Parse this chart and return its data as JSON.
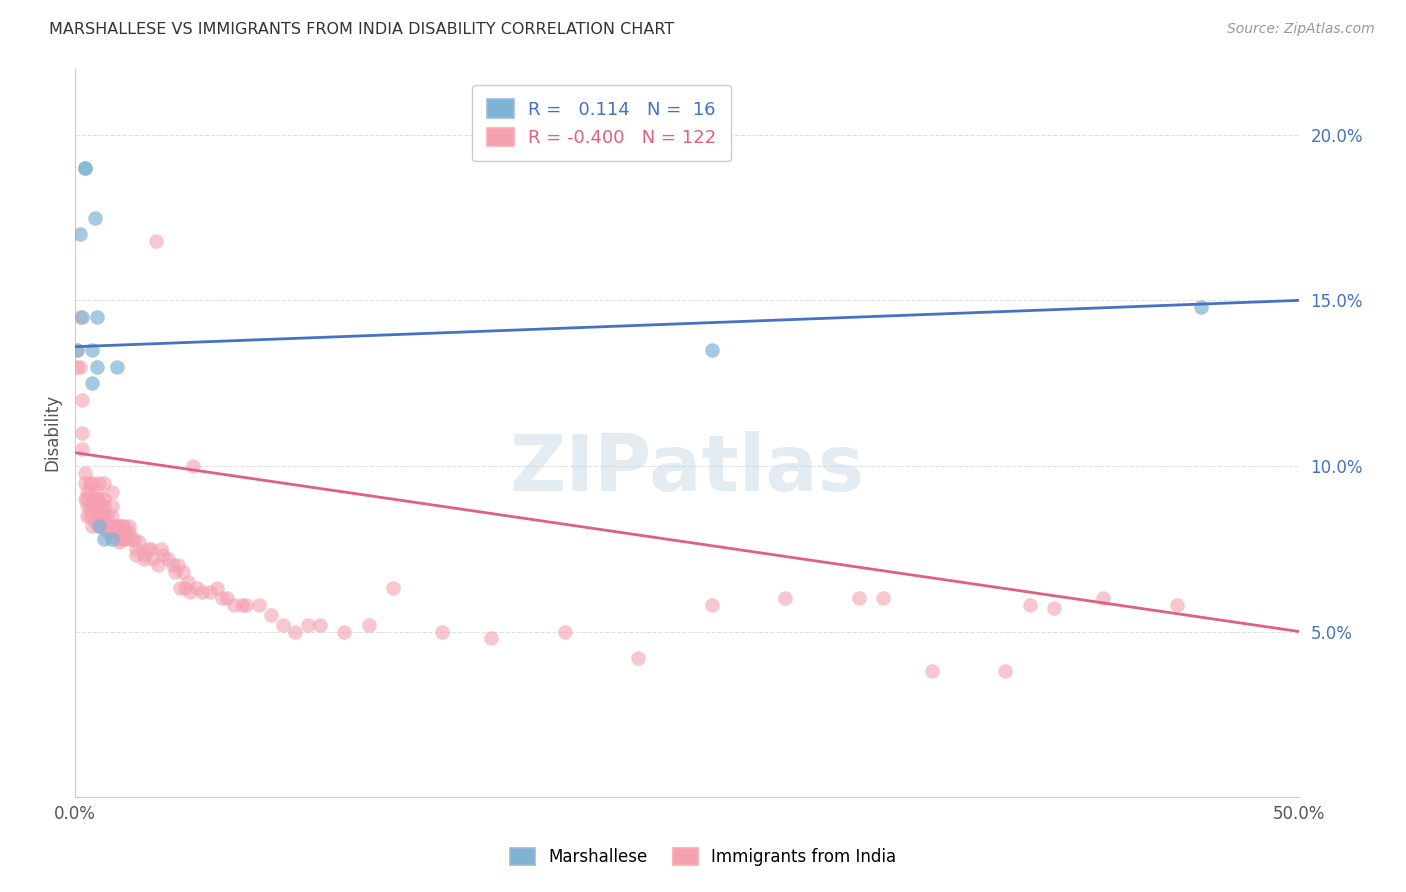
{
  "title": "MARSHALLESE VS IMMIGRANTS FROM INDIA DISABILITY CORRELATION CHART",
  "source": "Source: ZipAtlas.com",
  "ylabel": "Disability",
  "xlim": [
    0.0,
    0.5
  ],
  "ylim": [
    0.0,
    0.22
  ],
  "xticks": [
    0.0,
    0.1,
    0.2,
    0.3,
    0.4,
    0.5
  ],
  "xticklabels": [
    "0.0%",
    "",
    "",
    "",
    "",
    "50.0%"
  ],
  "yticks_right": [
    0.05,
    0.1,
    0.15,
    0.2
  ],
  "ytick_labels_right": [
    "5.0%",
    "10.0%",
    "15.0%",
    "20.0%"
  ],
  "grid_color": "#e0e0e0",
  "background_color": "#ffffff",
  "blue_color": "#7fb3d3",
  "pink_color": "#f4a0b0",
  "blue_line_color": "#4472c4",
  "pink_line_color": "#e06080",
  "legend_blue_r": "0.114",
  "legend_blue_n": "16",
  "legend_pink_r": "-0.400",
  "legend_pink_n": "122",
  "blue_line_x0": 0.0,
  "blue_line_y0": 0.136,
  "blue_line_x1": 0.5,
  "blue_line_y1": 0.15,
  "pink_line_x0": 0.0,
  "pink_line_x1": 0.5,
  "pink_line_y0": 0.104,
  "pink_line_y1": 0.05,
  "marshallese_x": [
    0.001,
    0.002,
    0.003,
    0.004,
    0.004,
    0.007,
    0.007,
    0.008,
    0.009,
    0.009,
    0.01,
    0.012,
    0.015,
    0.017,
    0.26,
    0.46
  ],
  "marshallese_y": [
    0.135,
    0.17,
    0.145,
    0.19,
    0.19,
    0.135,
    0.125,
    0.175,
    0.13,
    0.145,
    0.082,
    0.078,
    0.078,
    0.13,
    0.135,
    0.148
  ],
  "india_x": [
    0.001,
    0.001,
    0.002,
    0.002,
    0.003,
    0.003,
    0.003,
    0.004,
    0.004,
    0.004,
    0.005,
    0.005,
    0.005,
    0.005,
    0.006,
    0.006,
    0.006,
    0.006,
    0.007,
    0.007,
    0.007,
    0.007,
    0.008,
    0.008,
    0.008,
    0.008,
    0.009,
    0.009,
    0.009,
    0.009,
    0.01,
    0.01,
    0.01,
    0.01,
    0.01,
    0.011,
    0.011,
    0.011,
    0.012,
    0.012,
    0.012,
    0.012,
    0.013,
    0.013,
    0.013,
    0.014,
    0.014,
    0.015,
    0.015,
    0.015,
    0.016,
    0.016,
    0.017,
    0.017,
    0.018,
    0.018,
    0.018,
    0.019,
    0.019,
    0.02,
    0.02,
    0.02,
    0.021,
    0.021,
    0.022,
    0.022,
    0.023,
    0.024,
    0.025,
    0.025,
    0.026,
    0.028,
    0.028,
    0.03,
    0.031,
    0.032,
    0.033,
    0.034,
    0.035,
    0.036,
    0.038,
    0.04,
    0.041,
    0.042,
    0.043,
    0.044,
    0.045,
    0.046,
    0.047,
    0.048,
    0.05,
    0.052,
    0.055,
    0.058,
    0.06,
    0.062,
    0.065,
    0.068,
    0.07,
    0.075,
    0.08,
    0.085,
    0.09,
    0.095,
    0.1,
    0.11,
    0.12,
    0.13,
    0.15,
    0.17,
    0.2,
    0.23,
    0.26,
    0.29,
    0.32,
    0.33,
    0.35,
    0.38,
    0.39,
    0.4,
    0.42,
    0.45
  ],
  "india_y": [
    0.135,
    0.13,
    0.145,
    0.13,
    0.12,
    0.105,
    0.11,
    0.098,
    0.095,
    0.09,
    0.092,
    0.09,
    0.088,
    0.085,
    0.095,
    0.092,
    0.088,
    0.085,
    0.095,
    0.088,
    0.085,
    0.082,
    0.09,
    0.088,
    0.085,
    0.083,
    0.092,
    0.09,
    0.088,
    0.085,
    0.095,
    0.09,
    0.088,
    0.085,
    0.082,
    0.088,
    0.085,
    0.082,
    0.095,
    0.09,
    0.088,
    0.085,
    0.082,
    0.08,
    0.085,
    0.082,
    0.08,
    0.092,
    0.088,
    0.085,
    0.082,
    0.08,
    0.082,
    0.078,
    0.082,
    0.08,
    0.077,
    0.082,
    0.078,
    0.082,
    0.08,
    0.078,
    0.08,
    0.078,
    0.082,
    0.08,
    0.078,
    0.078,
    0.075,
    0.073,
    0.077,
    0.073,
    0.072,
    0.075,
    0.075,
    0.072,
    0.168,
    0.07,
    0.075,
    0.073,
    0.072,
    0.07,
    0.068,
    0.07,
    0.063,
    0.068,
    0.063,
    0.065,
    0.062,
    0.1,
    0.063,
    0.062,
    0.062,
    0.063,
    0.06,
    0.06,
    0.058,
    0.058,
    0.058,
    0.058,
    0.055,
    0.052,
    0.05,
    0.052,
    0.052,
    0.05,
    0.052,
    0.063,
    0.05,
    0.048,
    0.05,
    0.042,
    0.058,
    0.06,
    0.06,
    0.06,
    0.038,
    0.038,
    0.058,
    0.057,
    0.06,
    0.058
  ]
}
